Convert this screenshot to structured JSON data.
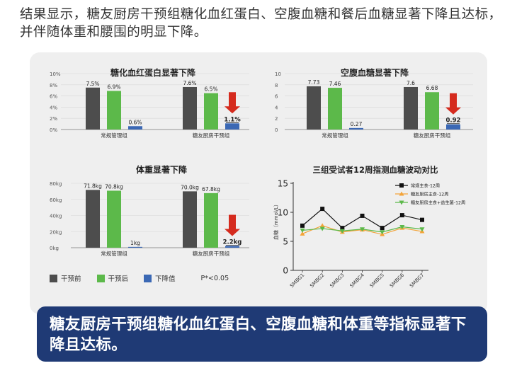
{
  "headline": "结果显示，糖友厨房干预组糖化血红蛋白、空腹血糖和餐后血糖显著下降且达标，并伴随体重和腰围的明显下降。",
  "callout": "糖友厨房干预组糖化血红蛋白、空腹血糖和体重等指标显著下降且达标。",
  "colors": {
    "before": "#4d4d4d",
    "after": "#5cb94a",
    "drop": "#3b68b4",
    "arrow": "#d52b1e",
    "panel": "#efefef",
    "callout": "#1f3a75"
  },
  "legend": {
    "before": "干预前",
    "after": "干预后",
    "drop": "下降值",
    "note": "P*<0.05"
  },
  "chart_data": [
    {
      "type": "bar",
      "title": "糖化血红蛋白显著下降",
      "categories": [
        "常规管理组",
        "糖友厨房干预组"
      ],
      "series": [
        {
          "name": "干预前",
          "values": [
            7.5,
            7.6
          ],
          "labels": [
            "7.5%",
            "7.6%"
          ]
        },
        {
          "name": "干预后",
          "values": [
            6.9,
            6.5
          ],
          "labels": [
            "6.9%",
            "6.5%"
          ]
        },
        {
          "name": "下降值",
          "values": [
            0.6,
            1.1
          ],
          "labels": [
            "0.6%",
            "1.1%"
          ]
        }
      ],
      "yticks": [
        "0%",
        "2%",
        "4%",
        "6%",
        "8%",
        "10%"
      ],
      "ylim": [
        0,
        10
      ],
      "highlight_arrow": "糖友厨房干预组"
    },
    {
      "type": "bar",
      "title": "空腹血糖显著下降",
      "categories": [
        "常规管理组",
        "糖友厨房干预组"
      ],
      "series": [
        {
          "name": "干预前",
          "values": [
            7.73,
            7.6
          ],
          "labels": [
            "7.73",
            "7.6"
          ]
        },
        {
          "name": "干预后",
          "values": [
            7.46,
            6.68
          ],
          "labels": [
            "7.46",
            "6.68"
          ]
        },
        {
          "name": "下降值",
          "values": [
            0.27,
            0.92
          ],
          "labels": [
            "0.27",
            "0.92"
          ]
        }
      ],
      "yticks": [
        "0",
        "2",
        "4",
        "6",
        "8",
        "10"
      ],
      "ylim": [
        0,
        10
      ],
      "highlight_arrow": "糖友厨房干预组"
    },
    {
      "type": "bar",
      "title": "体重显著下降",
      "categories": [
        "常规管理组",
        "糖友厨房干预组"
      ],
      "series": [
        {
          "name": "干预前",
          "values": [
            71.8,
            70.0
          ],
          "labels": [
            "71.8kg",
            "70.0kg"
          ]
        },
        {
          "name": "干预后",
          "values": [
            70.8,
            67.8
          ],
          "labels": [
            "70.8kg",
            "67.8kg"
          ]
        },
        {
          "name": "下降值",
          "values": [
            1,
            2.2
          ],
          "labels": [
            "1kg",
            "2.2kg"
          ]
        }
      ],
      "yticks": [
        "0kg",
        "20kg",
        "40kg",
        "60kg",
        "80kg"
      ],
      "ylim": [
        0,
        80
      ],
      "highlight_arrow": "糖友厨房干预组"
    },
    {
      "type": "line",
      "title": "三组受试者12周指测血糖波动对比",
      "ylabel": "血糖（mmol/L）",
      "x": [
        "SMBG1",
        "SMBG2",
        "SMBG3",
        "SMBG4",
        "SMBG5",
        "SMBG6",
        "SMBG7"
      ],
      "yticks": [
        "0",
        "5",
        "10",
        "15"
      ],
      "ylim": [
        0,
        15
      ],
      "series": [
        {
          "name": "常规主食-12周",
          "values": [
            7.7,
            10.6,
            7.3,
            9.4,
            7.3,
            9.5,
            8.7
          ],
          "color": "#111111",
          "marker": "square"
        },
        {
          "name": "糖友厨房主食-12周",
          "values": [
            6.3,
            7.7,
            6.6,
            7.0,
            6.2,
            7.3,
            6.7
          ],
          "color": "#f3a43a",
          "marker": "triangle-up"
        },
        {
          "name": "糖友厨房主食+益生菌-12周",
          "values": [
            6.9,
            7.2,
            6.8,
            7.1,
            6.6,
            7.5,
            7.1
          ],
          "color": "#5cb94a",
          "marker": "triangle-down"
        }
      ]
    }
  ]
}
